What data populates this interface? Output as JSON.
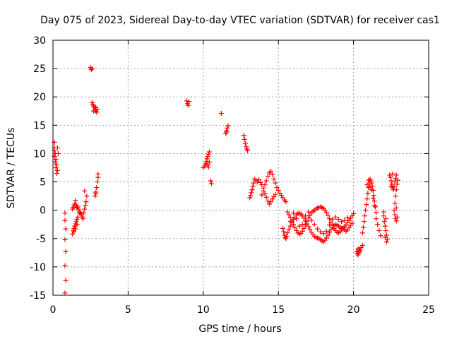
{
  "chart_data": {
    "type": "scatter",
    "title": "Day 075 of 2023, Sidereal Day-to-day VTEC variation (SDTVAR) for receiver cas1",
    "xlabel": "GPS time / hours",
    "ylabel": "SDTVAR / TECUs",
    "xlim": [
      0,
      25
    ],
    "ylim": [
      -15,
      30
    ],
    "xticks": [
      0,
      5,
      10,
      15,
      20,
      25
    ],
    "yticks": [
      -15,
      -10,
      -5,
      0,
      5,
      10,
      15,
      20,
      25,
      30
    ],
    "grid": true,
    "marker": "+",
    "series_color": "#ff0000",
    "series": [
      {
        "name": "SDTVAR",
        "points": [
          [
            0.1,
            12
          ],
          [
            0.1,
            11
          ],
          [
            0.1,
            10.5
          ],
          [
            0.15,
            10
          ],
          [
            0.1,
            9.5
          ],
          [
            0.2,
            9
          ],
          [
            0.15,
            8.5
          ],
          [
            0.25,
            8
          ],
          [
            0.2,
            7.5
          ],
          [
            0.3,
            7
          ],
          [
            0.25,
            6.5
          ],
          [
            0.35,
            10
          ],
          [
            0.3,
            11
          ],
          [
            0.8,
            -0.5
          ],
          [
            0.8,
            -1.8
          ],
          [
            0.85,
            -3.3
          ],
          [
            0.8,
            -5.2
          ],
          [
            0.85,
            -7.3
          ],
          [
            0.8,
            -9.8
          ],
          [
            0.85,
            -12.4
          ],
          [
            0.8,
            -14.6
          ],
          [
            1.3,
            -4.2
          ],
          [
            1.35,
            -3.6
          ],
          [
            1.4,
            -3.2
          ],
          [
            1.45,
            -2.8
          ],
          [
            1.5,
            -2.4
          ],
          [
            1.55,
            -2
          ],
          [
            1.6,
            -1.6
          ],
          [
            1.65,
            -1.2
          ],
          [
            1.3,
            0.2
          ],
          [
            1.35,
            0.5
          ],
          [
            1.4,
            0.8
          ],
          [
            1.45,
            1.1
          ],
          [
            1.5,
            1.7
          ],
          [
            1.55,
            0.9
          ],
          [
            1.6,
            0.4
          ],
          [
            1.65,
            0.6
          ],
          [
            1.7,
            0.2
          ],
          [
            1.75,
            -0.3
          ],
          [
            1.8,
            -0.6
          ],
          [
            1.85,
            -0.4
          ],
          [
            1.9,
            -0.8
          ],
          [
            1.95,
            -1.2
          ],
          [
            2.0,
            -1.5
          ],
          [
            2.05,
            -0.5
          ],
          [
            2.1,
            0.2
          ],
          [
            2.15,
            0.8
          ],
          [
            2.2,
            1.5
          ],
          [
            2.25,
            2.5
          ],
          [
            2.1,
            3.4
          ],
          [
            1.4,
            -3.8
          ],
          [
            1.5,
            -3.3
          ],
          [
            1.6,
            -2.5
          ],
          [
            2.5,
            25.2
          ],
          [
            2.55,
            24.8
          ],
          [
            2.6,
            25
          ],
          [
            2.6,
            19
          ],
          [
            2.65,
            18.7
          ],
          [
            2.7,
            18.4
          ],
          [
            2.75,
            18.1
          ],
          [
            2.8,
            17.8
          ],
          [
            2.85,
            17.5
          ],
          [
            2.9,
            17.3
          ],
          [
            2.95,
            17.8
          ],
          [
            2.7,
            17.5
          ],
          [
            2.85,
            18.2
          ],
          [
            2.8,
            2.5
          ],
          [
            2.85,
            3.2
          ],
          [
            2.9,
            4
          ],
          [
            2.95,
            5
          ],
          [
            3.0,
            5.8
          ],
          [
            3.0,
            6.4
          ],
          [
            2.85,
            2.9
          ],
          [
            8.9,
            19.3
          ],
          [
            8.95,
            18.8
          ],
          [
            9.0,
            18.5
          ],
          [
            9.05,
            19.2
          ],
          [
            10.0,
            7.5
          ],
          [
            10.1,
            7.8
          ],
          [
            10.15,
            8.2
          ],
          [
            10.2,
            8.6
          ],
          [
            10.25,
            9.1
          ],
          [
            10.3,
            9.5
          ],
          [
            10.35,
            9.9
          ],
          [
            10.4,
            10.3
          ],
          [
            10.3,
            8
          ],
          [
            10.4,
            8.5
          ],
          [
            10.35,
            7.6
          ],
          [
            10.5,
            5.2
          ],
          [
            10.55,
            4.7
          ],
          [
            11.2,
            17.1
          ],
          [
            11.5,
            13.5
          ],
          [
            11.55,
            14
          ],
          [
            11.6,
            14.5
          ],
          [
            11.65,
            14.9
          ],
          [
            11.55,
            13.8
          ],
          [
            12.7,
            13.2
          ],
          [
            12.75,
            12.5
          ],
          [
            12.8,
            11.8
          ],
          [
            12.85,
            11.2
          ],
          [
            12.9,
            10.8
          ],
          [
            12.95,
            10.5
          ],
          [
            13.1,
            2.2
          ],
          [
            13.15,
            2.6
          ],
          [
            13.2,
            3.1
          ],
          [
            13.25,
            3.6
          ],
          [
            13.3,
            4.2
          ],
          [
            13.35,
            4.8
          ],
          [
            13.4,
            5.5
          ],
          [
            13.5,
            5.3
          ],
          [
            13.6,
            5
          ],
          [
            13.7,
            5.4
          ],
          [
            13.8,
            4.9
          ],
          [
            13.9,
            4.5
          ],
          [
            14.0,
            3.9
          ],
          [
            14.1,
            4.5
          ],
          [
            14.2,
            5.2
          ],
          [
            14.3,
            6
          ],
          [
            14.4,
            6.6
          ],
          [
            14.5,
            6.9
          ],
          [
            14.6,
            6.3
          ],
          [
            14.7,
            5.5
          ],
          [
            14.8,
            4.8
          ],
          [
            14.9,
            4
          ],
          [
            15.0,
            3.5
          ],
          [
            15.1,
            3
          ],
          [
            15.2,
            2.6
          ],
          [
            15.3,
            2.2
          ],
          [
            15.4,
            1.8
          ],
          [
            15.5,
            1.5
          ],
          [
            14.6,
            2
          ],
          [
            14.7,
            2.4
          ],
          [
            14.8,
            2.8
          ],
          [
            14.5,
            1.5
          ],
          [
            14.4,
            1.1
          ],
          [
            14.3,
            1.6
          ],
          [
            14.2,
            2.3
          ],
          [
            14.1,
            3
          ],
          [
            14.0,
            3.4
          ],
          [
            13.9,
            2.7
          ],
          [
            15.3,
            -3.2
          ],
          [
            15.35,
            -3.8
          ],
          [
            15.4,
            -4.4
          ],
          [
            15.45,
            -4.8
          ],
          [
            15.5,
            -5
          ],
          [
            15.55,
            -4.6
          ],
          [
            15.6,
            -4
          ],
          [
            15.7,
            -3.4
          ],
          [
            15.8,
            -2.8
          ],
          [
            15.9,
            -2.2
          ],
          [
            16.0,
            -1.6
          ],
          [
            16.1,
            -1.2
          ],
          [
            16.2,
            -0.8
          ],
          [
            16.3,
            -0.6
          ],
          [
            16.4,
            -0.5
          ],
          [
            16.5,
            -0.7
          ],
          [
            16.6,
            -1
          ],
          [
            16.7,
            -1.4
          ],
          [
            16.8,
            -1.9
          ],
          [
            16.9,
            -2.4
          ],
          [
            17.0,
            -2.9
          ],
          [
            17.1,
            -3.4
          ],
          [
            17.2,
            -3.9
          ],
          [
            17.3,
            -4.3
          ],
          [
            17.4,
            -4.6
          ],
          [
            17.5,
            -4.8
          ],
          [
            17.6,
            -4.9
          ],
          [
            17.7,
            -5
          ],
          [
            17.8,
            -5.2
          ],
          [
            17.9,
            -5.4
          ],
          [
            18.0,
            -5.6
          ],
          [
            18.1,
            -5.3
          ],
          [
            18.2,
            -4.9
          ],
          [
            18.3,
            -4.4
          ],
          [
            18.4,
            -3.9
          ],
          [
            18.5,
            -3.4
          ],
          [
            18.6,
            -3
          ],
          [
            18.7,
            -2.7
          ],
          [
            18.8,
            -2.5
          ],
          [
            18.9,
            -2.6
          ],
          [
            19.0,
            -2.8
          ],
          [
            19.1,
            -3
          ],
          [
            19.2,
            -3.2
          ],
          [
            19.3,
            -3.1
          ],
          [
            19.4,
            -2.9
          ],
          [
            19.5,
            -2.6
          ],
          [
            19.6,
            -2.2
          ],
          [
            19.7,
            -1.8
          ],
          [
            19.8,
            -1.4
          ],
          [
            19.9,
            -1
          ],
          [
            20.0,
            -0.6
          ],
          [
            15.6,
            -0.3
          ],
          [
            15.7,
            -0.8
          ],
          [
            15.8,
            -1.3
          ],
          [
            15.9,
            -1.9
          ],
          [
            16.0,
            -2.5
          ],
          [
            16.1,
            -3.1
          ],
          [
            16.2,
            -3.6
          ],
          [
            16.3,
            -4
          ],
          [
            16.4,
            -4.2
          ],
          [
            16.5,
            -4.1
          ],
          [
            16.6,
            -3.7
          ],
          [
            16.7,
            -3.2
          ],
          [
            16.8,
            -2.6
          ],
          [
            16.9,
            -2
          ],
          [
            17.0,
            -1.4
          ],
          [
            17.1,
            -0.9
          ],
          [
            17.2,
            -0.5
          ],
          [
            17.3,
            -0.2
          ],
          [
            17.4,
            0
          ],
          [
            17.5,
            0.2
          ],
          [
            17.6,
            0.4
          ],
          [
            17.7,
            0.5
          ],
          [
            17.8,
            0.6
          ],
          [
            17.9,
            0.5
          ],
          [
            18.0,
            0.3
          ],
          [
            18.1,
            0
          ],
          [
            18.2,
            -0.4
          ],
          [
            18.3,
            -0.9
          ],
          [
            18.4,
            -1.5
          ],
          [
            18.5,
            -2.1
          ],
          [
            18.6,
            -2.7
          ],
          [
            18.7,
            -3.2
          ],
          [
            18.8,
            -3.6
          ],
          [
            18.9,
            -3.9
          ],
          [
            19.0,
            -4
          ],
          [
            19.1,
            -3.8
          ],
          [
            19.2,
            -3.5
          ],
          [
            19.3,
            -3.2
          ],
          [
            19.4,
            -3.4
          ],
          [
            19.5,
            -3.7
          ],
          [
            19.6,
            -3.5
          ],
          [
            19.7,
            -3.1
          ],
          [
            19.8,
            -2.7
          ],
          [
            19.9,
            -2.3
          ],
          [
            15.8,
            -2
          ],
          [
            16.0,
            -0.5
          ],
          [
            16.2,
            -1.5
          ],
          [
            16.4,
            -2.8
          ],
          [
            16.6,
            -2.5
          ],
          [
            16.8,
            -1
          ],
          [
            17.0,
            -0.3
          ],
          [
            17.2,
            -1.8
          ],
          [
            17.4,
            -2.5
          ],
          [
            17.6,
            -3.3
          ],
          [
            17.8,
            -3.8
          ],
          [
            18.0,
            -4.1
          ],
          [
            18.2,
            -3.7
          ],
          [
            18.4,
            -2.6
          ],
          [
            18.6,
            -1.6
          ],
          [
            18.8,
            -1.2
          ],
          [
            19.0,
            -1.6
          ],
          [
            19.2,
            -2
          ],
          [
            19.4,
            -1.8
          ],
          [
            19.6,
            -1.3
          ],
          [
            20.2,
            -7.3
          ],
          [
            20.25,
            -7.6
          ],
          [
            20.3,
            -7.9
          ],
          [
            20.35,
            -7.5
          ],
          [
            20.4,
            -7
          ],
          [
            20.5,
            -6.6
          ],
          [
            20.6,
            -6.2
          ],
          [
            20.3,
            -6.8
          ],
          [
            20.45,
            -7.2
          ],
          [
            20.6,
            -4
          ],
          [
            20.65,
            -3
          ],
          [
            20.7,
            -2
          ],
          [
            20.75,
            -1
          ],
          [
            20.8,
            0
          ],
          [
            20.85,
            1
          ],
          [
            20.9,
            2
          ],
          [
            20.95,
            3
          ],
          [
            21.0,
            4
          ],
          [
            21.05,
            4.8
          ],
          [
            21.1,
            5.5
          ],
          [
            21.15,
            5.2
          ],
          [
            21.2,
            4.8
          ],
          [
            21.25,
            4.2
          ],
          [
            21.3,
            3.5
          ],
          [
            21.35,
            2.6
          ],
          [
            21.4,
            1.6
          ],
          [
            21.45,
            0.6
          ],
          [
            21.5,
            -0.4
          ],
          [
            20.9,
            4.5
          ],
          [
            21.0,
            5.3
          ],
          [
            21.1,
            4.2
          ],
          [
            21.2,
            3.6
          ],
          [
            21.3,
            2.1
          ],
          [
            21.4,
            0.8
          ],
          [
            21.5,
            -1.5
          ],
          [
            21.6,
            -2.5
          ],
          [
            21.7,
            -3.6
          ],
          [
            21.8,
            -4.5
          ],
          [
            22.0,
            -1
          ],
          [
            22.05,
            -2
          ],
          [
            22.1,
            -2.8
          ],
          [
            22.15,
            -3.6
          ],
          [
            22.2,
            -4.4
          ],
          [
            22.25,
            -5.1
          ],
          [
            22.1,
            -4.8
          ],
          [
            22.2,
            -5.6
          ],
          [
            22.0,
            -0.3
          ],
          [
            22.15,
            -1.5
          ],
          [
            22.4,
            6.2
          ],
          [
            22.45,
            5.8
          ],
          [
            22.5,
            5.2
          ],
          [
            22.55,
            4.6
          ],
          [
            22.6,
            4
          ],
          [
            22.65,
            3.6
          ],
          [
            22.7,
            4.2
          ],
          [
            22.75,
            5
          ],
          [
            22.8,
            5.6
          ],
          [
            22.85,
            6.2
          ],
          [
            22.5,
            4.2
          ],
          [
            22.6,
            6.4
          ],
          [
            22.7,
            0
          ],
          [
            22.75,
            -0.8
          ],
          [
            22.8,
            -1.5
          ],
          [
            22.85,
            -1.9
          ],
          [
            22.9,
            -1.2
          ],
          [
            22.75,
            1.2
          ],
          [
            22.8,
            2.5
          ],
          [
            22.85,
            3.6
          ],
          [
            22.9,
            4.6
          ],
          [
            22.95,
            5.3
          ],
          [
            22.85,
            0.4
          ]
        ]
      }
    ]
  }
}
